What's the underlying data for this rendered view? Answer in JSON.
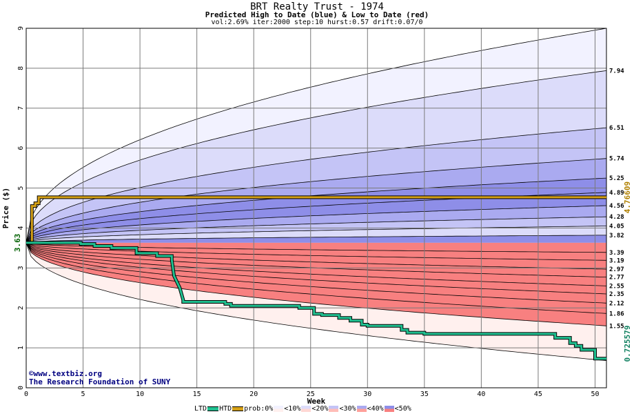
{
  "header": {
    "title": "BRT Realty Trust - 1974",
    "subtitle": "Predicted High to Date (blue) &  Low to Date (red)",
    "params": "vol:2.69% iter:2000 step:10 hurst:0.57 drift:0.07/0"
  },
  "credits": {
    "line1": "©www.textbiz.org",
    "line2": "The Research Foundation of SUNY"
  },
  "legend": {
    "ltd": "LTD",
    "htd": "HTD",
    "prob": "prob:0%",
    "b10": "<10%",
    "b20": "<20%",
    "b30": "<30%",
    "b40": "<40%",
    "b50": "<50%"
  },
  "colors": {
    "ltd": "#20c090",
    "htd": "#d4a017",
    "blue_bands": [
      "#f2f2ff",
      "#dcdcfa",
      "#c4c4f6",
      "#aaaaf0",
      "#8e8ee8"
    ],
    "red_bands": [
      "#fff0ee",
      "#ffd8d4",
      "#ffbdb8",
      "#ffa09a",
      "#f88080"
    ]
  },
  "chart_data": {
    "type": "area",
    "xlabel": "Week",
    "ylabel": "Price ($)",
    "xlim": [
      0,
      51
    ],
    "ylim": [
      0,
      9
    ],
    "xticks": [
      0,
      5,
      10,
      15,
      20,
      25,
      30,
      35,
      40,
      45,
      50
    ],
    "yticks": [
      0,
      1,
      2,
      3,
      4,
      5,
      6,
      7,
      8,
      9
    ],
    "start_price": 3.63,
    "start_label": "3.63",
    "high_quantiles_end": [
      7.94,
      6.51,
      5.74,
      5.25,
      4.89,
      4.56,
      4.28,
      4.05,
      3.82
    ],
    "high_labels": [
      "7.94",
      "6.51",
      "5.74",
      "5.25",
      "4.89",
      "4.56",
      "4.28",
      "4.05",
      "3.82"
    ],
    "low_quantiles_end": [
      3.39,
      3.19,
      2.97,
      2.77,
      2.55,
      2.35,
      2.12,
      1.86,
      1.55
    ],
    "low_labels": [
      "3.39",
      "3.19",
      "2.97",
      "2.77",
      "2.55",
      "2.35",
      "2.12",
      "1.86",
      "1.55"
    ],
    "outer_high_end": 9.0,
    "outer_low_end": 0.68,
    "htd_value": 4.76609,
    "htd_label": "4.76609",
    "ltd_value": 0.725579,
    "ltd_label": "0.725579",
    "htd_series": {
      "x": [
        0,
        0.5,
        0.5,
        0.8,
        0.8,
        1.1,
        1.1,
        51
      ],
      "y": [
        3.63,
        3.63,
        4.55,
        4.55,
        4.62,
        4.62,
        4.77,
        4.77
      ]
    },
    "ltd_series": {
      "x": [
        0,
        4.8,
        4.8,
        6,
        6,
        7.5,
        7.5,
        9.7,
        9.7,
        11.5,
        11.5,
        12.8,
        12.8,
        13,
        13.5,
        13.8,
        13.8,
        17.5,
        17.5,
        18,
        18,
        24,
        24,
        25.3,
        25.3,
        26,
        26,
        27.5,
        27.5,
        28.5,
        28.5,
        29.5,
        29.5,
        30,
        30,
        33,
        33,
        33.5,
        33.5,
        35,
        35,
        46.5,
        46.5,
        47.8,
        47.8,
        48.3,
        48.3,
        48.8,
        48.8,
        50,
        50,
        51
      ],
      "y": [
        3.63,
        3.63,
        3.6,
        3.6,
        3.55,
        3.55,
        3.5,
        3.5,
        3.37,
        3.37,
        3.3,
        3.3,
        3.2,
        2.8,
        2.5,
        2.2,
        2.15,
        2.15,
        2.1,
        2.1,
        2.05,
        2.05,
        2.0,
        2.0,
        1.85,
        1.85,
        1.82,
        1.82,
        1.75,
        1.75,
        1.68,
        1.68,
        1.58,
        1.58,
        1.55,
        1.55,
        1.45,
        1.45,
        1.38,
        1.38,
        1.35,
        1.35,
        1.25,
        1.25,
        1.12,
        1.12,
        1.05,
        1.05,
        0.95,
        0.95,
        0.73,
        0.73
      ]
    }
  }
}
